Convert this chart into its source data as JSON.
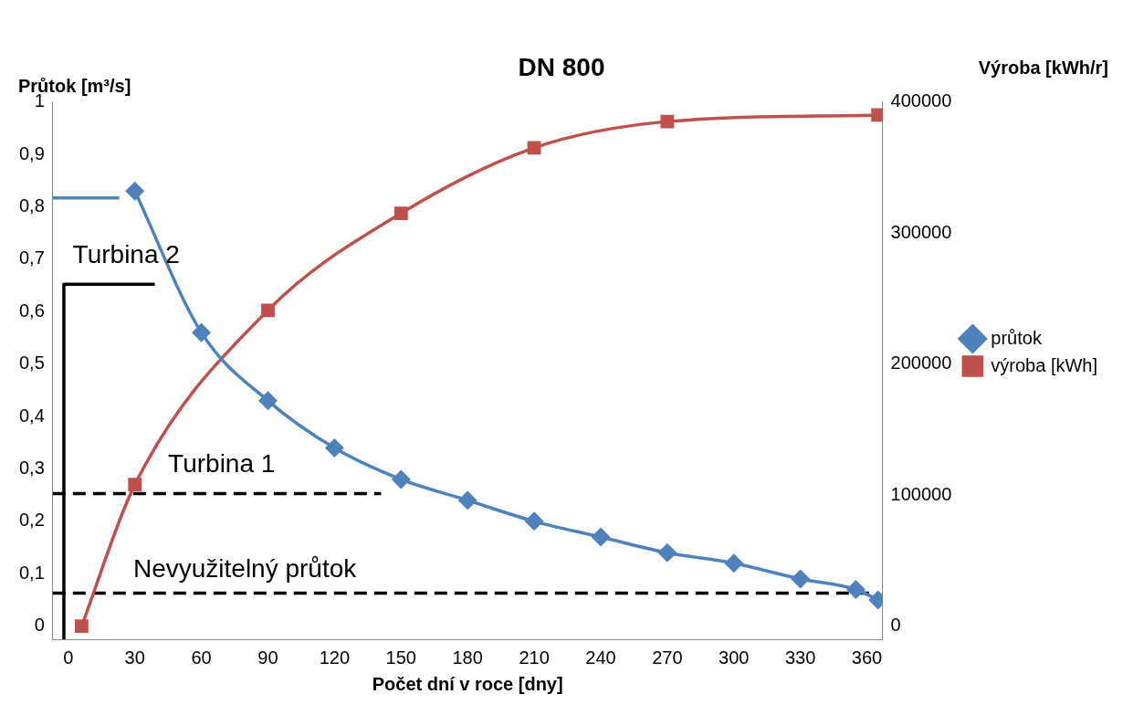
{
  "chart_data": {
    "type": "line",
    "title": "DN 800",
    "xlabel": "Počet dní v roce [dny]",
    "ylabel": "Průtok [m³/s]",
    "y2label": "Výroba [kWh/r]",
    "xlim": [
      -7,
      367
    ],
    "xticks": [
      0,
      30,
      60,
      90,
      120,
      150,
      180,
      210,
      240,
      270,
      300,
      330,
      360
    ],
    "ylim": [
      -0.025,
      1
    ],
    "yticks": [
      0,
      {
        "value": 0.1,
        "label": "0,1"
      },
      {
        "value": 0.2,
        "label": "0,2"
      },
      {
        "value": 0.3,
        "label": "0,3"
      },
      {
        "value": 0.4,
        "label": "0,4"
      },
      {
        "value": 0.5,
        "label": "0,5"
      },
      {
        "value": 0.6,
        "label": "0,6"
      },
      {
        "value": 0.7,
        "label": "0,7"
      },
      {
        "value": 0.8,
        "label": "0,8"
      },
      {
        "value": 0.9,
        "label": "0,9"
      },
      1
    ],
    "y2lim": [
      -10000,
      400000
    ],
    "y2ticks": [
      0,
      100000,
      200000,
      300000,
      400000
    ],
    "grid": false,
    "legend": "right",
    "series": [
      {
        "name": "průtok",
        "color": "#4f81bd",
        "marker": "diamond",
        "x": [
          30,
          60,
          90,
          120,
          150,
          180,
          210,
          240,
          270,
          300,
          330,
          355,
          365
        ],
        "values": [
          0.83,
          0.56,
          0.43,
          0.34,
          0.28,
          0.24,
          0.2,
          0.17,
          0.14,
          0.12,
          0.09,
          0.07,
          0.05
        ]
      },
      {
        "name": "výroba [kWh]",
        "color": "#c0504d",
        "marker": "square",
        "axis": "y2",
        "x": [
          6,
          30,
          90,
          150,
          210,
          270,
          365
        ],
        "values": [
          0,
          108000,
          241000,
          315000,
          365000,
          385000,
          390000
        ]
      },
      {
        "color": "#4f81bd",
        "marker": "none",
        "x": [
          -7,
          23
        ],
        "values": [
          0.817,
          0.817
        ]
      },
      {
        "color": "#000000",
        "marker": "none",
        "line_style": "dashed",
        "x": [
          -7,
          141
        ],
        "values": [
          0.253,
          0.253
        ]
      },
      {
        "color": "#000000",
        "marker": "none",
        "line_style": "dashed",
        "x": [
          -7,
          362
        ],
        "values": [
          0.063,
          0.063
        ]
      },
      {
        "color": "#000000",
        "marker": "none",
        "x": [
          -2,
          -2,
          39
        ],
        "values": [
          -0.025,
          0.652,
          0.652
        ]
      }
    ],
    "annotations": [
      "Turbina 2",
      "Turbina 1",
      "Nevyužitelný průtok"
    ]
  }
}
